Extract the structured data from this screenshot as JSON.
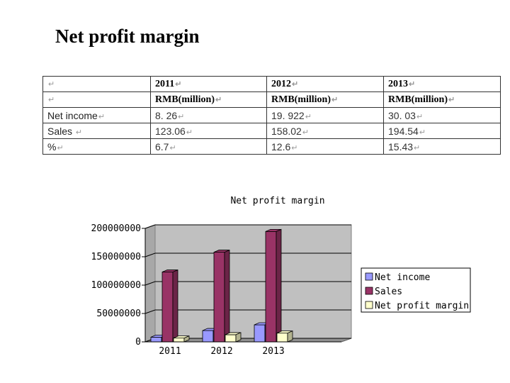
{
  "slide": {
    "title": "Net profit margin"
  },
  "table": {
    "mark": "↵",
    "header": [
      "",
      "2011",
      "2012",
      "2013"
    ],
    "units": [
      "",
      "RMB(million)",
      "RMB(million)",
      "RMB(million)"
    ],
    "rows": [
      [
        "Net income",
        "8. 26",
        "19. 922",
        "30. 03"
      ],
      [
        "Sales",
        "123.06",
        "158.02",
        "194.54"
      ],
      [
        "%",
        "6.7",
        "12.6",
        "15.43"
      ]
    ]
  },
  "chart_data": {
    "type": "bar",
    "title": "Net profit margin",
    "categories": [
      "2011",
      "2012",
      "2013"
    ],
    "ylim": [
      0,
      200000000
    ],
    "yticks": [
      "200000000",
      "150000000",
      "100000000",
      "50000000",
      "0"
    ],
    "series": [
      {
        "name": "Net income",
        "color": "#9999ff",
        "values": [
          8260000,
          19922000,
          30030000
        ]
      },
      {
        "name": "Sales",
        "color": "#993366",
        "values": [
          123060000,
          158020000,
          194540000
        ]
      },
      {
        "name": "Net profit margin",
        "color": "#ffffcc",
        "values": [
          6700000,
          12600000,
          15430000
        ]
      }
    ],
    "grid": true,
    "legend": "right",
    "style": "3d"
  }
}
